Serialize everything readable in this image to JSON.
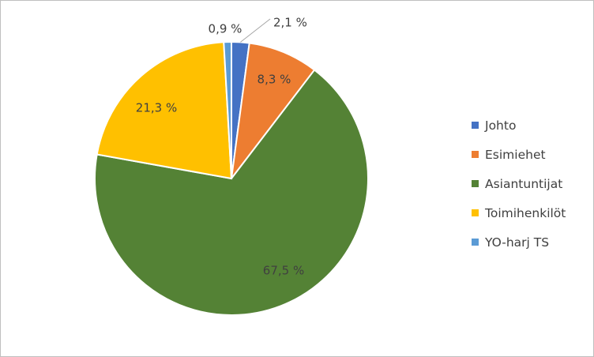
{
  "chart_data": {
    "type": "pie",
    "title": "",
    "legend_position": "right",
    "slices": [
      {
        "name": "Johto",
        "value": 2.1,
        "label": "2,1 %",
        "color": "#4472c4"
      },
      {
        "name": "Esimiehet",
        "value": 8.3,
        "label": "8,3 %",
        "color": "#ed7d31"
      },
      {
        "name": "Asiantuntijat",
        "value": 67.5,
        "label": "67,5 %",
        "color": "#548235"
      },
      {
        "name": "Toimihenkilöt",
        "value": 21.3,
        "label": "21,3 %",
        "color": "#ffc000"
      },
      {
        "name": "YO-harj TS",
        "value": 0.9,
        "label": "0,9 %",
        "color": "#5b9bd5"
      }
    ]
  }
}
